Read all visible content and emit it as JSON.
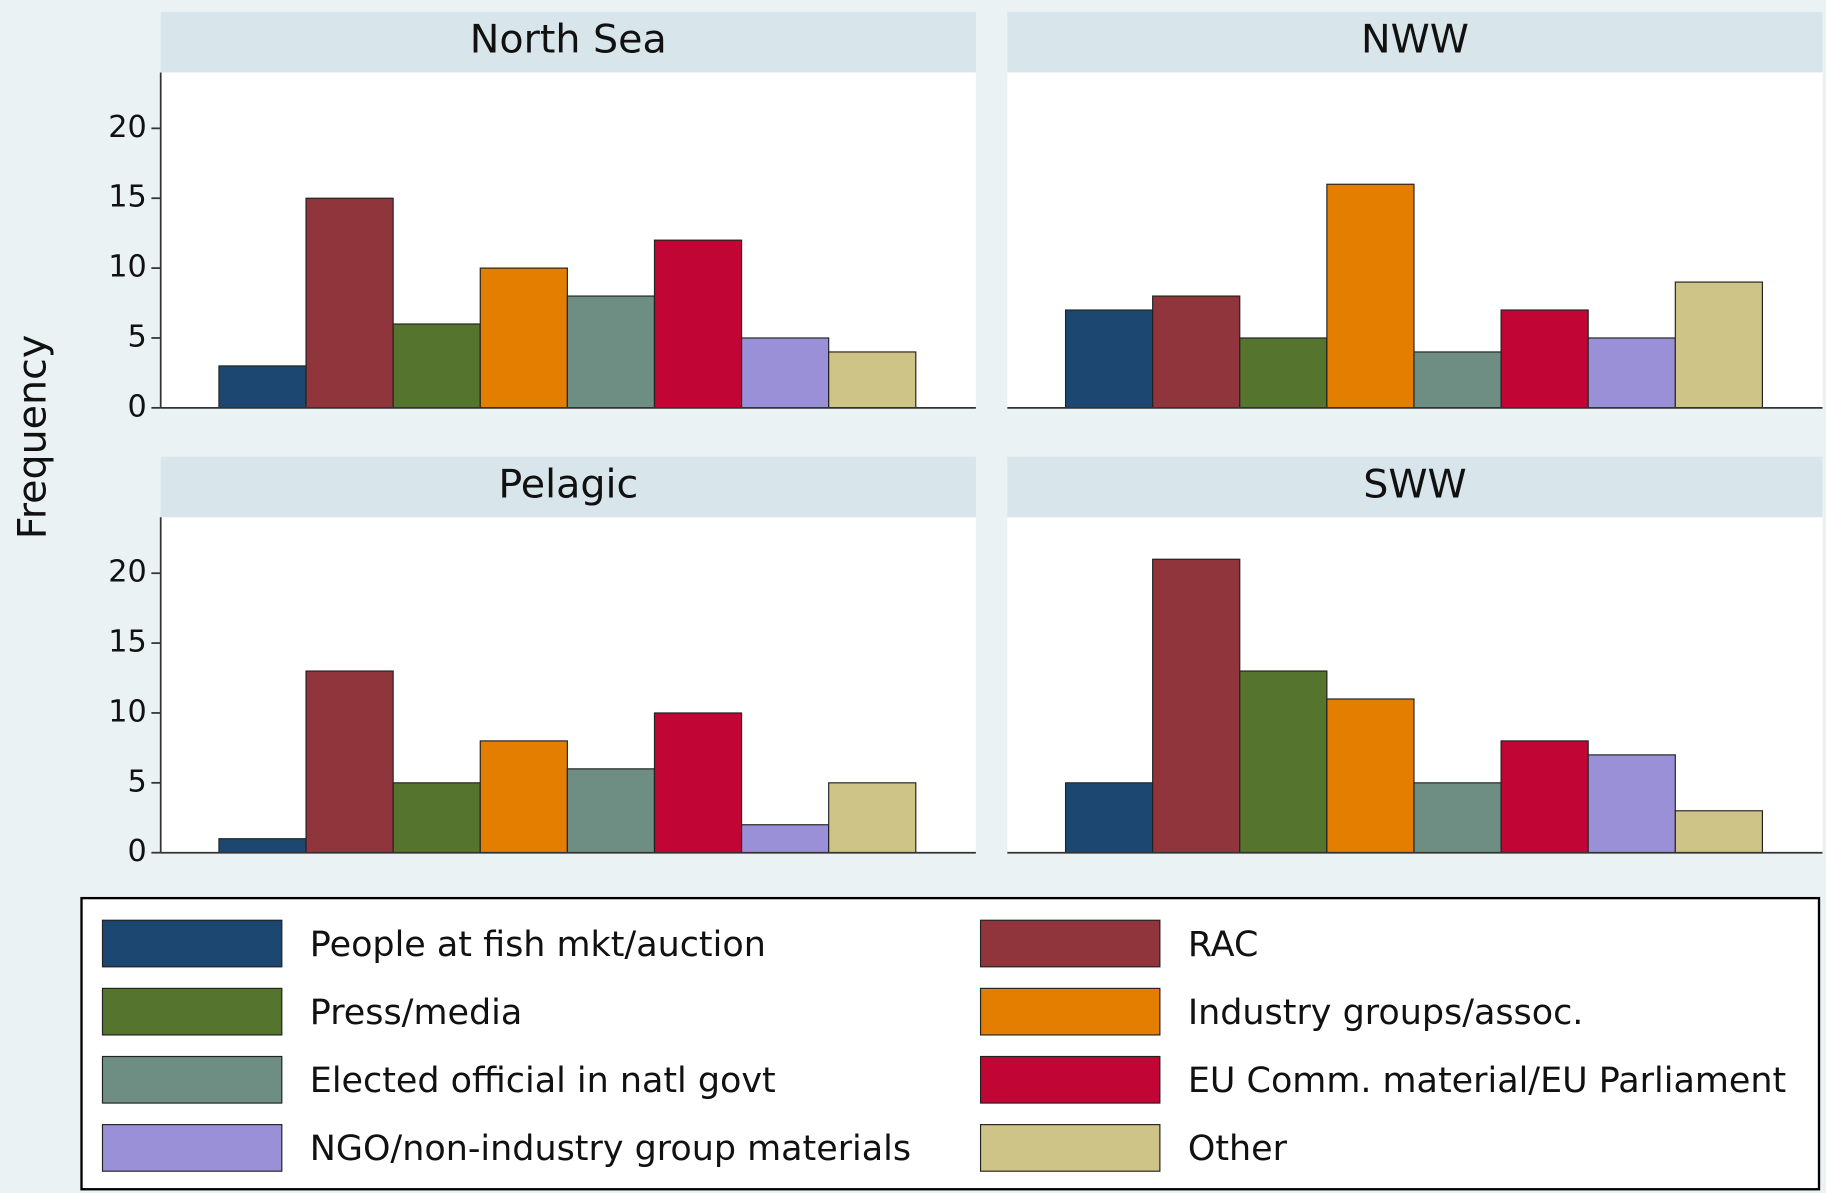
{
  "chart_data": {
    "type": "bar",
    "ylabel": "Frequency",
    "categories": [
      "North Sea",
      "NWW",
      "Pelagic",
      "SWW"
    ],
    "series": [
      {
        "name": "People at fish mkt/auction",
        "color": "#1b4770",
        "values": [
          3,
          7,
          1,
          5
        ]
      },
      {
        "name": "RAC",
        "color": "#90353b",
        "values": [
          15,
          8,
          13,
          21
        ]
      },
      {
        "name": "Press/media",
        "color": "#55752f",
        "values": [
          6,
          5,
          5,
          13
        ]
      },
      {
        "name": "Industry groups/assoc.",
        "color": "#e37e00",
        "values": [
          10,
          16,
          8,
          11
        ]
      },
      {
        "name": "Elected official in natl govt",
        "color": "#6e8e84",
        "values": [
          8,
          4,
          6,
          5
        ]
      },
      {
        "name": "EU Comm. material/EU Parliament",
        "color": "#c10534",
        "values": [
          12,
          7,
          10,
          8
        ]
      },
      {
        "name": "NGO/non-industry group materials",
        "color": "#9a90d8",
        "values": [
          5,
          5,
          2,
          7
        ]
      },
      {
        "name": "Other",
        "color": "#cfc488",
        "values": [
          4,
          9,
          5,
          3
        ]
      }
    ],
    "ylim": [
      0,
      24
    ],
    "yticks": [
      0,
      5,
      10,
      15,
      20
    ]
  }
}
